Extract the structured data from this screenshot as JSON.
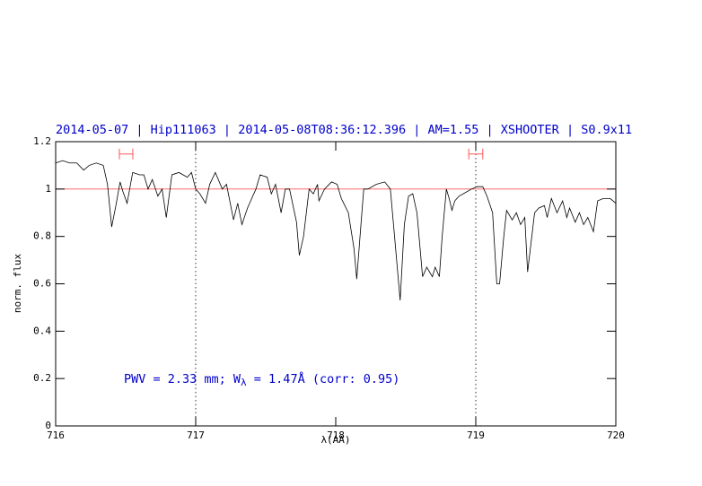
{
  "chart_data": {
    "type": "line",
    "title": "2014-05-07 | Hip111063 | 2014-05-08T08:36:12.396 | AM=1.55 | XSHOOTER | S0.9x11",
    "xlabel": "λ(AA)",
    "ylabel": "norm. flux",
    "annotation": {
      "pre": "PWV = 2.33 mm; W",
      "sub": "λ",
      "post": " = 1.47Å (corr: 0.95)"
    },
    "x": [
      716.0,
      716.05,
      716.1,
      716.15,
      716.2,
      716.24,
      716.29,
      716.34,
      716.37,
      716.4,
      716.43,
      716.46,
      716.48,
      716.51,
      716.55,
      716.6,
      716.63,
      716.66,
      716.69,
      716.73,
      716.76,
      716.79,
      716.83,
      716.88,
      716.94,
      716.97,
      717.0,
      717.03,
      717.07,
      717.1,
      717.14,
      717.19,
      717.22,
      717.27,
      717.3,
      717.33,
      717.37,
      717.4,
      717.43,
      717.46,
      717.51,
      717.54,
      717.57,
      717.61,
      717.64,
      717.67,
      717.72,
      717.74,
      717.77,
      717.81,
      717.84,
      717.87,
      717.88,
      717.92,
      717.97,
      718.01,
      718.04,
      718.09,
      718.13,
      718.15,
      718.18,
      718.2,
      718.23,
      718.29,
      718.35,
      718.39,
      718.42,
      718.46,
      718.49,
      718.52,
      718.55,
      718.58,
      718.62,
      718.65,
      718.69,
      718.71,
      718.74,
      718.76,
      718.79,
      718.81,
      718.83,
      718.85,
      718.88,
      718.94,
      718.97,
      719.01,
      719.05,
      719.08,
      719.12,
      719.15,
      719.17,
      719.2,
      719.22,
      719.26,
      719.29,
      719.32,
      719.35,
      719.37,
      719.4,
      719.42,
      719.45,
      719.49,
      719.51,
      719.54,
      719.58,
      719.62,
      719.65,
      719.67,
      719.71,
      719.74,
      719.77,
      719.8,
      719.84,
      719.87,
      719.91,
      719.96,
      720.0
    ],
    "series": [
      {
        "color": "#000000",
        "values": [
          1.11,
          1.12,
          1.11,
          1.11,
          1.08,
          1.1,
          1.11,
          1.1,
          1.02,
          0.84,
          0.93,
          1.03,
          0.99,
          0.94,
          1.07,
          1.06,
          1.06,
          1.0,
          1.04,
          0.97,
          1.0,
          0.88,
          1.06,
          1.07,
          1.05,
          1.07,
          1.0,
          0.98,
          0.94,
          1.02,
          1.07,
          1.0,
          1.02,
          0.87,
          0.94,
          0.85,
          0.92,
          0.96,
          1.0,
          1.06,
          1.05,
          0.98,
          1.02,
          0.9,
          1.0,
          1.0,
          0.86,
          0.72,
          0.8,
          1.0,
          0.98,
          1.02,
          0.95,
          1.0,
          1.03,
          1.02,
          0.96,
          0.9,
          0.75,
          0.62,
          0.85,
          1.0,
          1.0,
          1.02,
          1.03,
          1.0,
          0.8,
          0.53,
          0.85,
          0.97,
          0.98,
          0.9,
          0.63,
          0.67,
          0.63,
          0.67,
          0.63,
          0.8,
          1.0,
          0.96,
          0.91,
          0.95,
          0.97,
          0.99,
          1.0,
          1.01,
          1.01,
          0.97,
          0.9,
          0.6,
          0.6,
          0.8,
          0.91,
          0.87,
          0.9,
          0.85,
          0.88,
          0.65,
          0.8,
          0.9,
          0.92,
          0.93,
          0.88,
          0.96,
          0.9,
          0.95,
          0.88,
          0.92,
          0.86,
          0.9,
          0.85,
          0.88,
          0.82,
          0.95,
          0.96,
          0.96,
          0.94
        ]
      }
    ],
    "hlines": [
      {
        "value": 1,
        "color": "#ff5555"
      }
    ],
    "vlines": [
      717,
      719
    ],
    "ranges": [
      {
        "x": [
          716.455,
          716.551
        ],
        "y": 1.148,
        "color": "#ff5555"
      },
      {
        "x": [
          718.95,
          719.05
        ],
        "y": 1.148,
        "color": "#ff5555"
      }
    ],
    "xlim": [
      716,
      720
    ],
    "ylim": [
      0,
      1.2
    ],
    "xticks": [
      716,
      717,
      718,
      719,
      720
    ],
    "yticks": [
      0,
      0.2,
      0.4,
      0.6,
      0.8,
      1,
      1.2
    ]
  }
}
